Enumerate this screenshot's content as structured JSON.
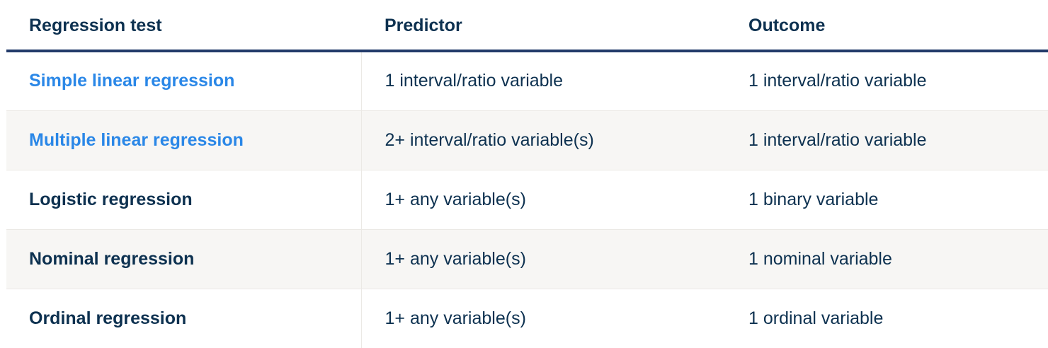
{
  "table": {
    "headers": {
      "test": "Regression test",
      "predictor": "Predictor",
      "outcome": "Outcome"
    },
    "rows": [
      {
        "test": "Simple linear regression",
        "test_is_link": true,
        "predictor": "1 interval/ratio variable",
        "outcome": "1 interval/ratio variable"
      },
      {
        "test": "Multiple linear regression",
        "test_is_link": true,
        "predictor": "2+ interval/ratio variable(s)",
        "outcome": "1 interval/ratio variable"
      },
      {
        "test": "Logistic regression",
        "test_is_link": false,
        "predictor": "1+ any variable(s)",
        "outcome": "1 binary variable"
      },
      {
        "test": "Nominal regression",
        "test_is_link": false,
        "predictor": "1+ any variable(s)",
        "outcome": "1 nominal variable"
      },
      {
        "test": "Ordinal regression",
        "test_is_link": false,
        "predictor": "1+ any variable(s)",
        "outcome": "1 ordinal variable"
      }
    ]
  },
  "colors": {
    "heading_text": "#0d3150",
    "link_text": "#2a87e7",
    "header_rule": "#223b6a",
    "striped_row_bg": "#f7f6f4"
  }
}
